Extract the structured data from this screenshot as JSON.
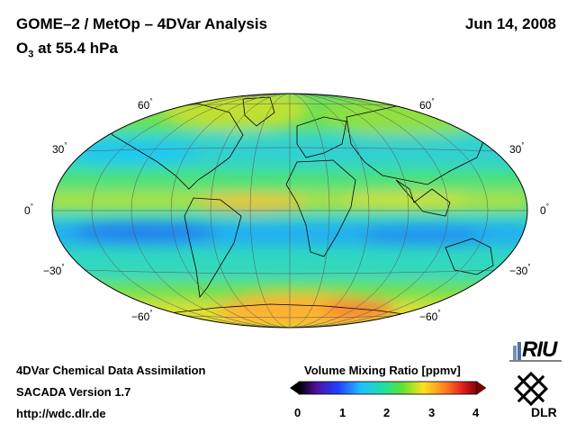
{
  "header": {
    "title": "GOME–2 / MetOp – 4DVar Analysis",
    "subtitle_base": "O",
    "subtitle_sub": "3",
    "subtitle_rest": " at 55.4 hPa",
    "date": "Jun 14, 2008"
  },
  "map": {
    "projection": "Hammer-Aitoff (global)",
    "lat_labels": {
      "n60": "60",
      "n30": "30",
      "eq": "0",
      "s30": "−30",
      "s60": "−60"
    },
    "degree_symbol": "°",
    "colors": {
      "low": "#2060ff",
      "mid_low": "#20d0f0",
      "mid": "#20e080",
      "mid_high": "#ffe020",
      "high": "#ff8020"
    }
  },
  "colorbar": {
    "title": "Volume Mixing Ratio [ppmv]",
    "ticks": [
      "0",
      "1",
      "2",
      "3",
      "4"
    ],
    "range": [
      0,
      4
    ]
  },
  "footer": {
    "line1": "4DVar Chemical Data Assimilation",
    "line2": "SACADA Version 1.7",
    "line3": "http://wdc.dlr.de"
  },
  "logos": {
    "riu_text": "RIU",
    "dlr_text": "DLR"
  }
}
